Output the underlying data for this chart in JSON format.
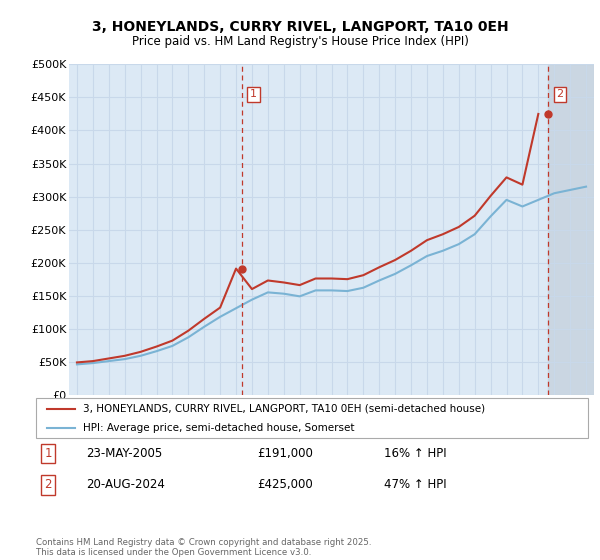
{
  "title_line1": "3, HONEYLANDS, CURRY RIVEL, LANGPORT, TA10 0EH",
  "title_line2": "Price paid vs. HM Land Registry's House Price Index (HPI)",
  "background_color": "#ffffff",
  "plot_bg_color": "#dce9f5",
  "grid_color": "#c8d8ea",
  "hpi_color": "#7ab3d4",
  "price_color": "#c0392b",
  "forecast_color": "#c8d4e0",
  "legend_label1": "3, HONEYLANDS, CURRY RIVEL, LANGPORT, TA10 0EH (semi-detached house)",
  "legend_label2": "HPI: Average price, semi-detached house, Somerset",
  "footer": "Contains HM Land Registry data © Crown copyright and database right 2025.\nThis data is licensed under the Open Government Licence v3.0.",
  "sale1_date": "23-MAY-2005",
  "sale1_price": 191000,
  "sale1_label": "16% ↑ HPI",
  "sale2_date": "20-AUG-2024",
  "sale2_price": 425000,
  "sale2_label": "47% ↑ HPI",
  "sale1_year": 2005.39,
  "sale2_year": 2024.63,
  "ylim": [
    0,
    500000
  ],
  "yticks": [
    0,
    50000,
    100000,
    150000,
    200000,
    250000,
    300000,
    350000,
    400000,
    450000,
    500000
  ],
  "ytick_labels": [
    "£0",
    "£50K",
    "£100K",
    "£150K",
    "£200K",
    "£250K",
    "£300K",
    "£350K",
    "£400K",
    "£450K",
    "£500K"
  ],
  "xlim_start": 1994.5,
  "xlim_end": 2027.5,
  "hpi_years": [
    1995,
    1996,
    1997,
    1998,
    1999,
    2000,
    2001,
    2002,
    2003,
    2004,
    2005,
    2006,
    2007,
    2008,
    2009,
    2010,
    2011,
    2012,
    2013,
    2014,
    2015,
    2016,
    2017,
    2018,
    2019,
    2020,
    2021,
    2022,
    2023,
    2024,
    2025,
    2026,
    2027
  ],
  "hpi_values": [
    46000,
    48000,
    51000,
    54000,
    59000,
    66000,
    74000,
    87000,
    103000,
    118000,
    131000,
    144000,
    155000,
    153000,
    149000,
    158000,
    158000,
    157000,
    162000,
    173000,
    183000,
    196000,
    210000,
    218000,
    228000,
    243000,
    270000,
    295000,
    285000,
    295000,
    305000,
    310000,
    315000
  ],
  "price_years": [
    1995,
    1996,
    1997,
    1998,
    1999,
    2000,
    2001,
    2002,
    2003,
    2004,
    2005,
    2006,
    2007,
    2008,
    2009,
    2010,
    2011,
    2012,
    2013,
    2014,
    2015,
    2016,
    2017,
    2018,
    2019,
    2020,
    2021,
    2022,
    2023,
    2024
  ],
  "price_values": [
    49000,
    51000,
    55000,
    59000,
    65000,
    73000,
    82000,
    97000,
    115000,
    132000,
    191000,
    160000,
    173000,
    170000,
    166000,
    176000,
    176000,
    175000,
    181000,
    193000,
    204000,
    218000,
    234000,
    243000,
    254000,
    271000,
    301000,
    329000,
    318000,
    425000
  ]
}
